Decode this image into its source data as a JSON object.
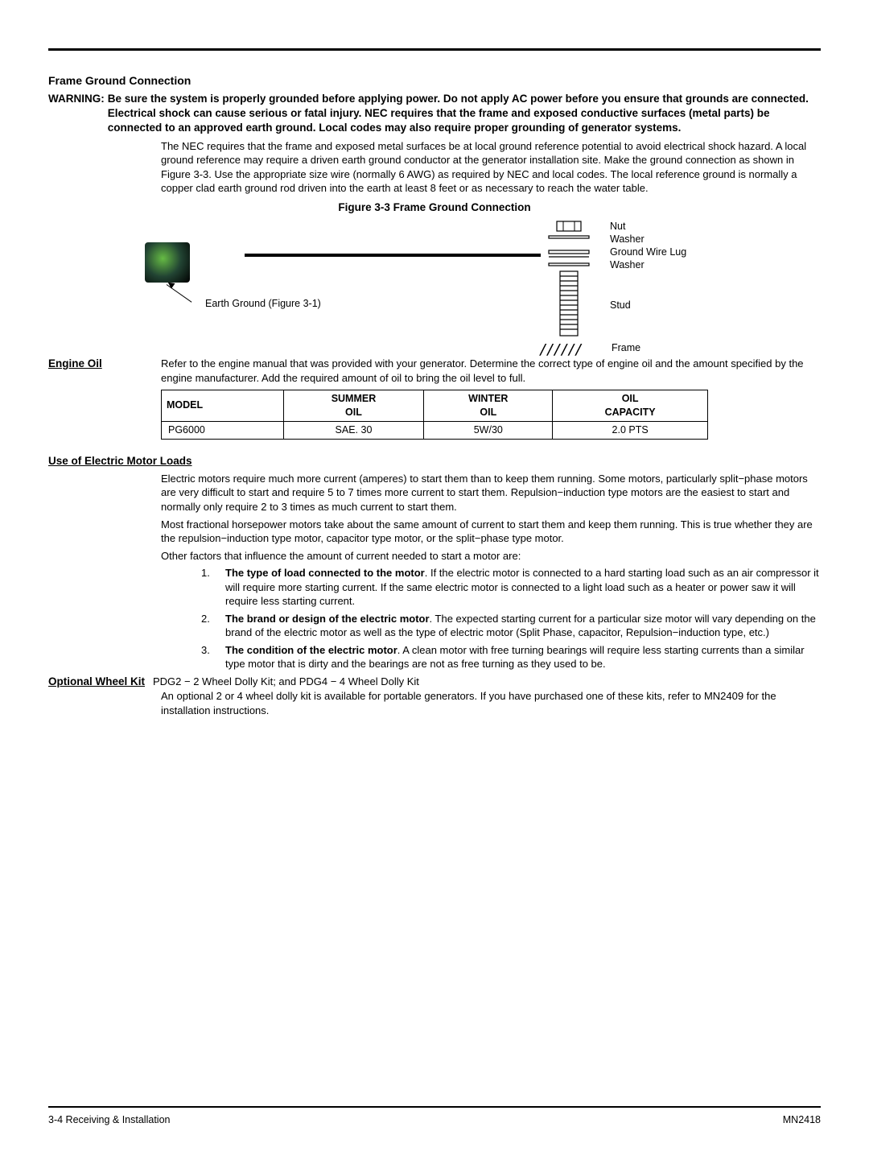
{
  "frame_ground": {
    "title": "Frame Ground Connection",
    "warning_label": "WARNING:",
    "warning_text": "Be sure the system is properly grounded before applying power.  Do not apply AC power before you ensure that grounds are connected.  Electrical shock can cause serious or fatal injury.   NEC requires that the frame and exposed conductive surfaces (metal parts) be connected to an approved earth ground.  Local codes may also require proper grounding of generator systems.",
    "body": "The NEC requires that the frame and exposed metal surfaces be at local ground reference potential to avoid electrical shock hazard.  A local ground reference may require a driven earth ground conductor at the generator installation site.  Make the ground connection as shown in Figure 3-3.  Use the appropriate size wire (normally 6 AWG) as required by NEC and local codes.  The local reference ground is normally a copper clad earth ground rod driven into the earth at least 8 feet or as necessary to reach the water table.",
    "figure_title": "Figure 3-3  Frame Ground Connection",
    "figure": {
      "earth_label": "Earth Ground (Figure 3-1)",
      "nut": "Nut",
      "washer1": "Washer",
      "lug": "Ground Wire Lug",
      "washer2": "Washer",
      "stud": "Stud",
      "frame": "Frame"
    }
  },
  "engine_oil": {
    "heading": "Engine Oil",
    "text": "Refer to the engine manual that was provided with your generator.  Determine the correct type of engine oil and the amount specified by the engine manufacturer.  Add the required amount of oil to bring the oil level to full.",
    "table": {
      "headers": {
        "model": "MODEL",
        "summer": "SUMMER OIL",
        "winter": "WINTER OIL",
        "capacity": "OIL CAPACITY"
      },
      "row": {
        "model": "PG6000",
        "summer": "SAE. 30",
        "winter": "5W/30",
        "capacity": "2.0 PTS"
      }
    }
  },
  "motor_loads": {
    "heading": "Use of Electric Motor Loads",
    "p1": "Electric motors require much more current (amperes) to start them than to keep them running. Some motors, particularly split−phase motors are very difficult to start and require 5 to 7 times more current to start them. Repulsion−induction type motors are the easiest to start and normally only require 2 to 3 times as much current to start them.",
    "p2": "Most fractional horsepower motors take about the same amount of current to start them and keep them running. This is true whether they are the repulsion−induction type motor, capacitor type motor, or the split−phase type motor.",
    "p3": "Other factors that influence the amount of current needed to start a motor are:",
    "items": [
      {
        "num": "1.",
        "bold": "The type of load connected to the motor",
        "rest": ". If the electric motor is connected to a hard starting load such as an air compressor it will require more starting current. If the same electric motor is connected to a light load such as a heater or power saw it will require less starting current."
      },
      {
        "num": "2.",
        "bold": "The brand or design of the electric motor",
        "rest": ". The expected starting current for a particular size motor will vary depending on the brand of the electric motor as well as the type of electric motor (Split Phase, capacitor, Repulsion−induction type, etc.)"
      },
      {
        "num": "3.",
        "bold": "The condition of the electric motor",
        "rest": ". A clean motor with free turning bearings will require less starting currents than a similar type motor that is dirty and the bearings are not as free turning as they used to be."
      }
    ]
  },
  "wheel_kit": {
    "heading": "Optional Wheel Kit",
    "line1": "PDG2 − 2 Wheel Dolly Kit; and PDG4 − 4 Wheel Dolly Kit",
    "line2": "An optional 2 or 4 wheel dolly kit is available for portable generators.  If you have purchased one of these kits, refer to MN2409 for the installation instructions."
  },
  "footer": {
    "left": "3-4 Receiving & Installation",
    "right": "MN2418"
  }
}
